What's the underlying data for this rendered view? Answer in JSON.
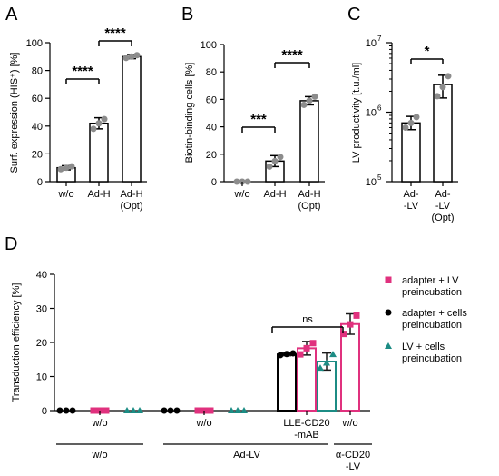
{
  "colors": {
    "black": "#000000",
    "bar_fill": "#ffffff",
    "point_gray": "#8c8c8c",
    "pink": "#e0317e",
    "teal": "#1c8c84"
  },
  "chart_data": [
    {
      "panel": "A",
      "type": "bar",
      "ylabel": "Surf. expression (HIS⁺) [%]",
      "ylim": [
        0,
        100
      ],
      "yticks": [
        "0",
        "20",
        "40",
        "60",
        "80",
        "100"
      ],
      "categories": [
        {
          "lines": [
            "w/o"
          ],
          "mean": 10,
          "sd": 1.5,
          "points": [
            9,
            10,
            11
          ]
        },
        {
          "lines": [
            "Ad-H"
          ],
          "mean": 42,
          "sd": 4,
          "points": [
            38,
            42,
            45
          ]
        },
        {
          "lines": [
            "Ad-H",
            "(Opt)"
          ],
          "mean": 90,
          "sd": 1.5,
          "points": [
            89,
            90,
            91
          ]
        }
      ],
      "significance": [
        {
          "from": 0,
          "to": 1,
          "label": "****"
        },
        {
          "from": 1,
          "to": 2,
          "label": "****"
        }
      ]
    },
    {
      "panel": "B",
      "type": "bar",
      "ylabel": "Biotin-binding cells [%]",
      "ylim": [
        0,
        100
      ],
      "yticks": [
        "0",
        "20",
        "40",
        "60",
        "80",
        "100"
      ],
      "categories": [
        {
          "lines": [
            "w/o"
          ],
          "mean": 0.5,
          "sd": 0.3,
          "points": [
            0,
            0,
            0
          ]
        },
        {
          "lines": [
            "Ad-H"
          ],
          "mean": 15,
          "sd": 4,
          "points": [
            11,
            15,
            18
          ]
        },
        {
          "lines": [
            "Ad-H",
            "(Opt)"
          ],
          "mean": 59,
          "sd": 3,
          "points": [
            56,
            59,
            62
          ]
        }
      ],
      "significance": [
        {
          "from": 0,
          "to": 1,
          "label": "***"
        },
        {
          "from": 1,
          "to": 2,
          "label": "****"
        }
      ]
    },
    {
      "panel": "C",
      "type": "bar",
      "scale": "log",
      "ylabel": "LV productivity [t.u./ml]",
      "ylim": [
        100000,
        10000000
      ],
      "yticks": [
        {
          "value": 100000,
          "mantissa": "10",
          "exp": "5"
        },
        {
          "value": 1000000,
          "mantissa": "10",
          "exp": "6"
        },
        {
          "value": 10000000,
          "mantissa": "10",
          "exp": "7"
        }
      ],
      "categories": [
        {
          "lines": [
            "Ad-",
            "-LV"
          ],
          "mean": 700000,
          "sd_range": [
            560000,
            870000
          ],
          "points": [
            600000,
            700000,
            850000
          ]
        },
        {
          "lines": [
            "Ad-",
            "-LV",
            "(Opt)"
          ],
          "mean": 2500000,
          "sd_range": [
            1600000,
            3400000
          ],
          "points": [
            1700000,
            2300000,
            3300000
          ]
        }
      ],
      "significance": [
        {
          "from": 0,
          "to": 1,
          "label": "*"
        }
      ]
    },
    {
      "panel": "D",
      "type": "bar",
      "ylabel": "Transduction efficiency [%]",
      "ylim": [
        0,
        40
      ],
      "yticks": [
        "0",
        "10",
        "20",
        "30",
        "40"
      ],
      "series": [
        {
          "name": "adapter + LV preincubation",
          "name_lines": [
            "adapter + LV",
            "preincubation"
          ],
          "color_key": "pink",
          "marker": "square"
        },
        {
          "name": "adapter + cells preincubation",
          "name_lines": [
            "adapter + cells",
            "preincubation"
          ],
          "color_key": "black",
          "marker": "circle"
        },
        {
          "name": "LV + cells preincubation",
          "name_lines": [
            "LV + cells",
            " preincubation"
          ],
          "color_key": "teal",
          "marker": "triangle"
        }
      ],
      "bars": [
        {
          "series": 1,
          "group": 0,
          "mean": 0,
          "sd": 0,
          "points": [
            0,
            0,
            0
          ]
        },
        {
          "series": 0,
          "group": 0,
          "mean": 0,
          "sd": 0,
          "points": [
            0,
            0,
            0
          ]
        },
        {
          "series": 2,
          "group": 0,
          "mean": 0,
          "sd": 0,
          "points": [
            0,
            0,
            0
          ]
        },
        {
          "series": 1,
          "group": 1,
          "mean": 0,
          "sd": 0,
          "points": [
            0,
            0,
            0
          ]
        },
        {
          "series": 0,
          "group": 1,
          "mean": 0,
          "sd": 0,
          "points": [
            0,
            0,
            0
          ]
        },
        {
          "series": 2,
          "group": 1,
          "mean": 0,
          "sd": 0,
          "points": [
            0,
            0,
            0
          ]
        },
        {
          "series": 1,
          "group": 2,
          "mean": 16.5,
          "sd": 0.4,
          "points": [
            16.3,
            16.6,
            16.8
          ]
        },
        {
          "series": 0,
          "group": 2,
          "mean": 18.3,
          "sd": 2.0,
          "points": [
            16.5,
            18.3,
            19.8
          ]
        },
        {
          "series": 2,
          "group": 2,
          "mean": 14.4,
          "sd": 2.5,
          "points": [
            12.5,
            14,
            16.5
          ]
        },
        {
          "series": 0,
          "group": 3,
          "mean": 25.4,
          "sd": 3.0,
          "points": [
            22.5,
            25.3,
            27.9
          ]
        }
      ],
      "group_labels": [
        {
          "lines": [
            "w/o"
          ]
        },
        {
          "lines": [
            "w/o"
          ]
        },
        {
          "lines": [
            "LLE-CD20",
            "-mAB"
          ]
        },
        {
          "lines": [
            "w/o"
          ]
        }
      ],
      "brackets": [
        {
          "lines": [
            "w/o"
          ]
        },
        {
          "lines": [
            "Ad-LV"
          ]
        },
        {
          "lines": [
            "α-CD20",
            "-LV"
          ]
        }
      ],
      "significance": [
        {
          "label": "ns"
        }
      ]
    }
  ]
}
